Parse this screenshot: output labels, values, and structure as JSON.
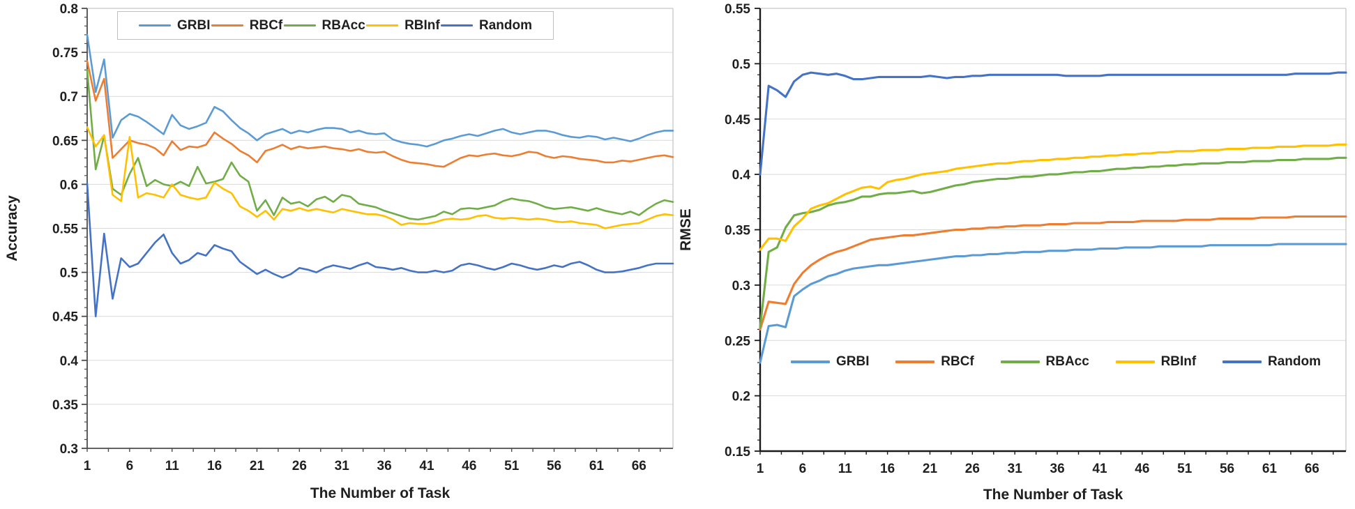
{
  "page": {
    "background": "#ffffff"
  },
  "chart_data": [
    {
      "type": "line",
      "title": "",
      "xlabel": "The Number of Task",
      "ylabel": "Accuracy",
      "ylim": [
        0.3,
        0.8
      ],
      "ytick_step": 0.05,
      "y_tick_labels": [
        "0.8",
        "0.75",
        "0.7",
        "0.65",
        "0.6",
        "0.55",
        "0.5",
        "0.45",
        "0.4",
        "0.35",
        "0.3"
      ],
      "x_tick_labels": [
        "1",
        "6",
        "11",
        "16",
        "21",
        "26",
        "31",
        "36",
        "41",
        "46",
        "51",
        "56",
        "61",
        "66"
      ],
      "x_start": 1,
      "x_step": 1,
      "n_points": 70,
      "grid": "horizontal",
      "legend_position": "top-inside-boxed",
      "series": [
        {
          "name": "GRBI",
          "color": "#5B9BD5",
          "values": [
            0.77,
            0.705,
            0.742,
            0.653,
            0.673,
            0.68,
            0.677,
            0.671,
            0.664,
            0.657,
            0.679,
            0.667,
            0.663,
            0.666,
            0.67,
            0.688,
            0.683,
            0.673,
            0.664,
            0.658,
            0.65,
            0.657,
            0.66,
            0.663,
            0.658,
            0.661,
            0.659,
            0.662,
            0.664,
            0.664,
            0.663,
            0.659,
            0.661,
            0.658,
            0.657,
            0.658,
            0.651,
            0.648,
            0.646,
            0.645,
            0.643,
            0.646,
            0.65,
            0.652,
            0.655,
            0.657,
            0.655,
            0.658,
            0.661,
            0.663,
            0.659,
            0.657,
            0.659,
            0.661,
            0.661,
            0.659,
            0.656,
            0.654,
            0.653,
            0.655,
            0.654,
            0.651,
            0.653,
            0.651,
            0.649,
            0.652,
            0.656,
            0.659,
            0.661,
            0.661
          ]
        },
        {
          "name": "RBCf",
          "color": "#ED7D31",
          "values": [
            0.74,
            0.695,
            0.72,
            0.63,
            0.64,
            0.65,
            0.647,
            0.645,
            0.641,
            0.633,
            0.649,
            0.639,
            0.643,
            0.642,
            0.645,
            0.659,
            0.652,
            0.646,
            0.638,
            0.633,
            0.625,
            0.638,
            0.641,
            0.645,
            0.64,
            0.643,
            0.641,
            0.642,
            0.643,
            0.641,
            0.64,
            0.638,
            0.64,
            0.637,
            0.636,
            0.637,
            0.632,
            0.628,
            0.625,
            0.624,
            0.623,
            0.621,
            0.62,
            0.625,
            0.63,
            0.633,
            0.632,
            0.634,
            0.635,
            0.633,
            0.632,
            0.634,
            0.637,
            0.636,
            0.632,
            0.63,
            0.632,
            0.631,
            0.629,
            0.628,
            0.627,
            0.625,
            0.625,
            0.627,
            0.626,
            0.628,
            0.63,
            0.632,
            0.633,
            0.631
          ]
        },
        {
          "name": "RBAcc",
          "color": "#70AD47",
          "values": [
            0.73,
            0.617,
            0.655,
            0.595,
            0.588,
            0.612,
            0.63,
            0.598,
            0.605,
            0.6,
            0.598,
            0.603,
            0.598,
            0.62,
            0.601,
            0.603,
            0.606,
            0.625,
            0.61,
            0.603,
            0.57,
            0.582,
            0.565,
            0.585,
            0.578,
            0.58,
            0.575,
            0.583,
            0.586,
            0.58,
            0.588,
            0.586,
            0.578,
            0.576,
            0.574,
            0.57,
            0.567,
            0.564,
            0.561,
            0.56,
            0.562,
            0.564,
            0.569,
            0.566,
            0.572,
            0.573,
            0.572,
            0.574,
            0.576,
            0.581,
            0.584,
            0.582,
            0.581,
            0.578,
            0.574,
            0.572,
            0.573,
            0.574,
            0.572,
            0.57,
            0.573,
            0.57,
            0.568,
            0.566,
            0.569,
            0.565,
            0.572,
            0.578,
            0.582,
            0.58
          ]
        },
        {
          "name": "RBInf",
          "color": "#FFC000",
          "values": [
            0.665,
            0.643,
            0.656,
            0.588,
            0.581,
            0.654,
            0.585,
            0.59,
            0.588,
            0.585,
            0.6,
            0.588,
            0.585,
            0.583,
            0.585,
            0.602,
            0.595,
            0.59,
            0.575,
            0.57,
            0.563,
            0.57,
            0.56,
            0.572,
            0.57,
            0.573,
            0.57,
            0.572,
            0.57,
            0.568,
            0.572,
            0.57,
            0.568,
            0.566,
            0.566,
            0.564,
            0.56,
            0.554,
            0.556,
            0.555,
            0.555,
            0.557,
            0.56,
            0.561,
            0.56,
            0.561,
            0.564,
            0.565,
            0.562,
            0.561,
            0.562,
            0.561,
            0.56,
            0.561,
            0.56,
            0.558,
            0.557,
            0.558,
            0.556,
            0.555,
            0.554,
            0.55,
            0.552,
            0.554,
            0.555,
            0.556,
            0.56,
            0.564,
            0.566,
            0.565
          ]
        },
        {
          "name": "Random",
          "color": "#4472C4",
          "values": [
            0.601,
            0.45,
            0.544,
            0.47,
            0.516,
            0.506,
            0.51,
            0.522,
            0.534,
            0.543,
            0.522,
            0.51,
            0.514,
            0.522,
            0.519,
            0.531,
            0.527,
            0.524,
            0.512,
            0.505,
            0.498,
            0.503,
            0.498,
            0.494,
            0.498,
            0.505,
            0.503,
            0.5,
            0.505,
            0.508,
            0.506,
            0.504,
            0.508,
            0.511,
            0.506,
            0.505,
            0.503,
            0.505,
            0.502,
            0.5,
            0.5,
            0.502,
            0.5,
            0.502,
            0.508,
            0.51,
            0.508,
            0.505,
            0.503,
            0.506,
            0.51,
            0.508,
            0.505,
            0.503,
            0.505,
            0.508,
            0.506,
            0.51,
            0.512,
            0.508,
            0.503,
            0.5,
            0.5,
            0.501,
            0.503,
            0.505,
            0.508,
            0.51,
            0.51,
            0.51
          ]
        }
      ]
    },
    {
      "type": "line",
      "title": "",
      "xlabel": "The Number of Task",
      "ylabel": "RMSE",
      "ylim": [
        0.15,
        0.55
      ],
      "ytick_step": 0.05,
      "y_tick_labels": [
        "0.55",
        "0.5",
        "0.45",
        "0.4",
        "0.35",
        "0.3",
        "0.25",
        "0.2",
        "0.15"
      ],
      "x_tick_labels": [
        "1",
        "6",
        "11",
        "16",
        "21",
        "26",
        "31",
        "36",
        "41",
        "46",
        "51",
        "56",
        "61",
        "66"
      ],
      "x_start": 1,
      "x_step": 1,
      "n_points": 70,
      "grid": "horizontal",
      "legend_position": "bottom-inside",
      "series": [
        {
          "name": "GRBI",
          "color": "#5B9BD5",
          "values": [
            0.23,
            0.263,
            0.264,
            0.262,
            0.29,
            0.296,
            0.301,
            0.304,
            0.308,
            0.31,
            0.313,
            0.315,
            0.316,
            0.317,
            0.318,
            0.318,
            0.319,
            0.32,
            0.321,
            0.322,
            0.323,
            0.324,
            0.325,
            0.326,
            0.326,
            0.327,
            0.327,
            0.328,
            0.328,
            0.329,
            0.329,
            0.33,
            0.33,
            0.33,
            0.331,
            0.331,
            0.331,
            0.332,
            0.332,
            0.332,
            0.333,
            0.333,
            0.333,
            0.334,
            0.334,
            0.334,
            0.334,
            0.335,
            0.335,
            0.335,
            0.335,
            0.335,
            0.335,
            0.336,
            0.336,
            0.336,
            0.336,
            0.336,
            0.336,
            0.336,
            0.336,
            0.337,
            0.337,
            0.337,
            0.337,
            0.337,
            0.337,
            0.337,
            0.337,
            0.337
          ]
        },
        {
          "name": "RBCf",
          "color": "#ED7D31",
          "values": [
            0.26,
            0.285,
            0.284,
            0.283,
            0.301,
            0.311,
            0.318,
            0.323,
            0.327,
            0.33,
            0.332,
            0.335,
            0.338,
            0.341,
            0.342,
            0.343,
            0.344,
            0.345,
            0.345,
            0.346,
            0.347,
            0.348,
            0.349,
            0.35,
            0.35,
            0.351,
            0.351,
            0.352,
            0.352,
            0.353,
            0.353,
            0.354,
            0.354,
            0.354,
            0.355,
            0.355,
            0.355,
            0.356,
            0.356,
            0.356,
            0.356,
            0.357,
            0.357,
            0.357,
            0.357,
            0.358,
            0.358,
            0.358,
            0.358,
            0.358,
            0.359,
            0.359,
            0.359,
            0.359,
            0.36,
            0.36,
            0.36,
            0.36,
            0.36,
            0.361,
            0.361,
            0.361,
            0.361,
            0.362,
            0.362,
            0.362,
            0.362,
            0.362,
            0.362,
            0.362
          ]
        },
        {
          "name": "RBAcc",
          "color": "#70AD47",
          "values": [
            0.262,
            0.33,
            0.334,
            0.352,
            0.363,
            0.365,
            0.366,
            0.368,
            0.372,
            0.374,
            0.375,
            0.377,
            0.38,
            0.38,
            0.382,
            0.383,
            0.383,
            0.384,
            0.385,
            0.383,
            0.384,
            0.386,
            0.388,
            0.39,
            0.391,
            0.393,
            0.394,
            0.395,
            0.396,
            0.396,
            0.397,
            0.398,
            0.398,
            0.399,
            0.4,
            0.4,
            0.401,
            0.402,
            0.402,
            0.403,
            0.403,
            0.404,
            0.405,
            0.405,
            0.406,
            0.406,
            0.407,
            0.407,
            0.408,
            0.408,
            0.409,
            0.409,
            0.41,
            0.41,
            0.41,
            0.411,
            0.411,
            0.411,
            0.412,
            0.412,
            0.412,
            0.413,
            0.413,
            0.413,
            0.414,
            0.414,
            0.414,
            0.414,
            0.415,
            0.415
          ]
        },
        {
          "name": "RBInf",
          "color": "#FFC000",
          "values": [
            0.332,
            0.342,
            0.342,
            0.34,
            0.353,
            0.36,
            0.369,
            0.372,
            0.374,
            0.378,
            0.382,
            0.385,
            0.388,
            0.389,
            0.387,
            0.393,
            0.395,
            0.396,
            0.398,
            0.4,
            0.401,
            0.402,
            0.403,
            0.405,
            0.406,
            0.407,
            0.408,
            0.409,
            0.41,
            0.41,
            0.411,
            0.412,
            0.412,
            0.413,
            0.413,
            0.414,
            0.414,
            0.415,
            0.415,
            0.416,
            0.416,
            0.417,
            0.417,
            0.418,
            0.418,
            0.419,
            0.419,
            0.42,
            0.42,
            0.421,
            0.421,
            0.421,
            0.422,
            0.422,
            0.422,
            0.423,
            0.423,
            0.423,
            0.424,
            0.424,
            0.424,
            0.425,
            0.425,
            0.425,
            0.426,
            0.426,
            0.426,
            0.426,
            0.427,
            0.427
          ]
        },
        {
          "name": "Random",
          "color": "#4472C4",
          "values": [
            0.4,
            0.48,
            0.476,
            0.47,
            0.484,
            0.49,
            0.492,
            0.491,
            0.49,
            0.491,
            0.489,
            0.486,
            0.486,
            0.487,
            0.488,
            0.488,
            0.488,
            0.488,
            0.488,
            0.488,
            0.489,
            0.488,
            0.487,
            0.488,
            0.488,
            0.489,
            0.489,
            0.49,
            0.49,
            0.49,
            0.49,
            0.49,
            0.49,
            0.49,
            0.49,
            0.49,
            0.489,
            0.489,
            0.489,
            0.489,
            0.489,
            0.49,
            0.49,
            0.49,
            0.49,
            0.49,
            0.49,
            0.49,
            0.49,
            0.49,
            0.49,
            0.49,
            0.49,
            0.49,
            0.49,
            0.49,
            0.49,
            0.49,
            0.49,
            0.49,
            0.49,
            0.49,
            0.49,
            0.491,
            0.491,
            0.491,
            0.491,
            0.491,
            0.492,
            0.492
          ]
        }
      ]
    }
  ],
  "colors": {
    "gridline": "#D9D9D9",
    "plot_border": "#C6C6C6",
    "axis_left_chart": "#4d4d4d",
    "axis_right_chart": "#1a1a1a",
    "tick_label": "#1f1f1f"
  }
}
